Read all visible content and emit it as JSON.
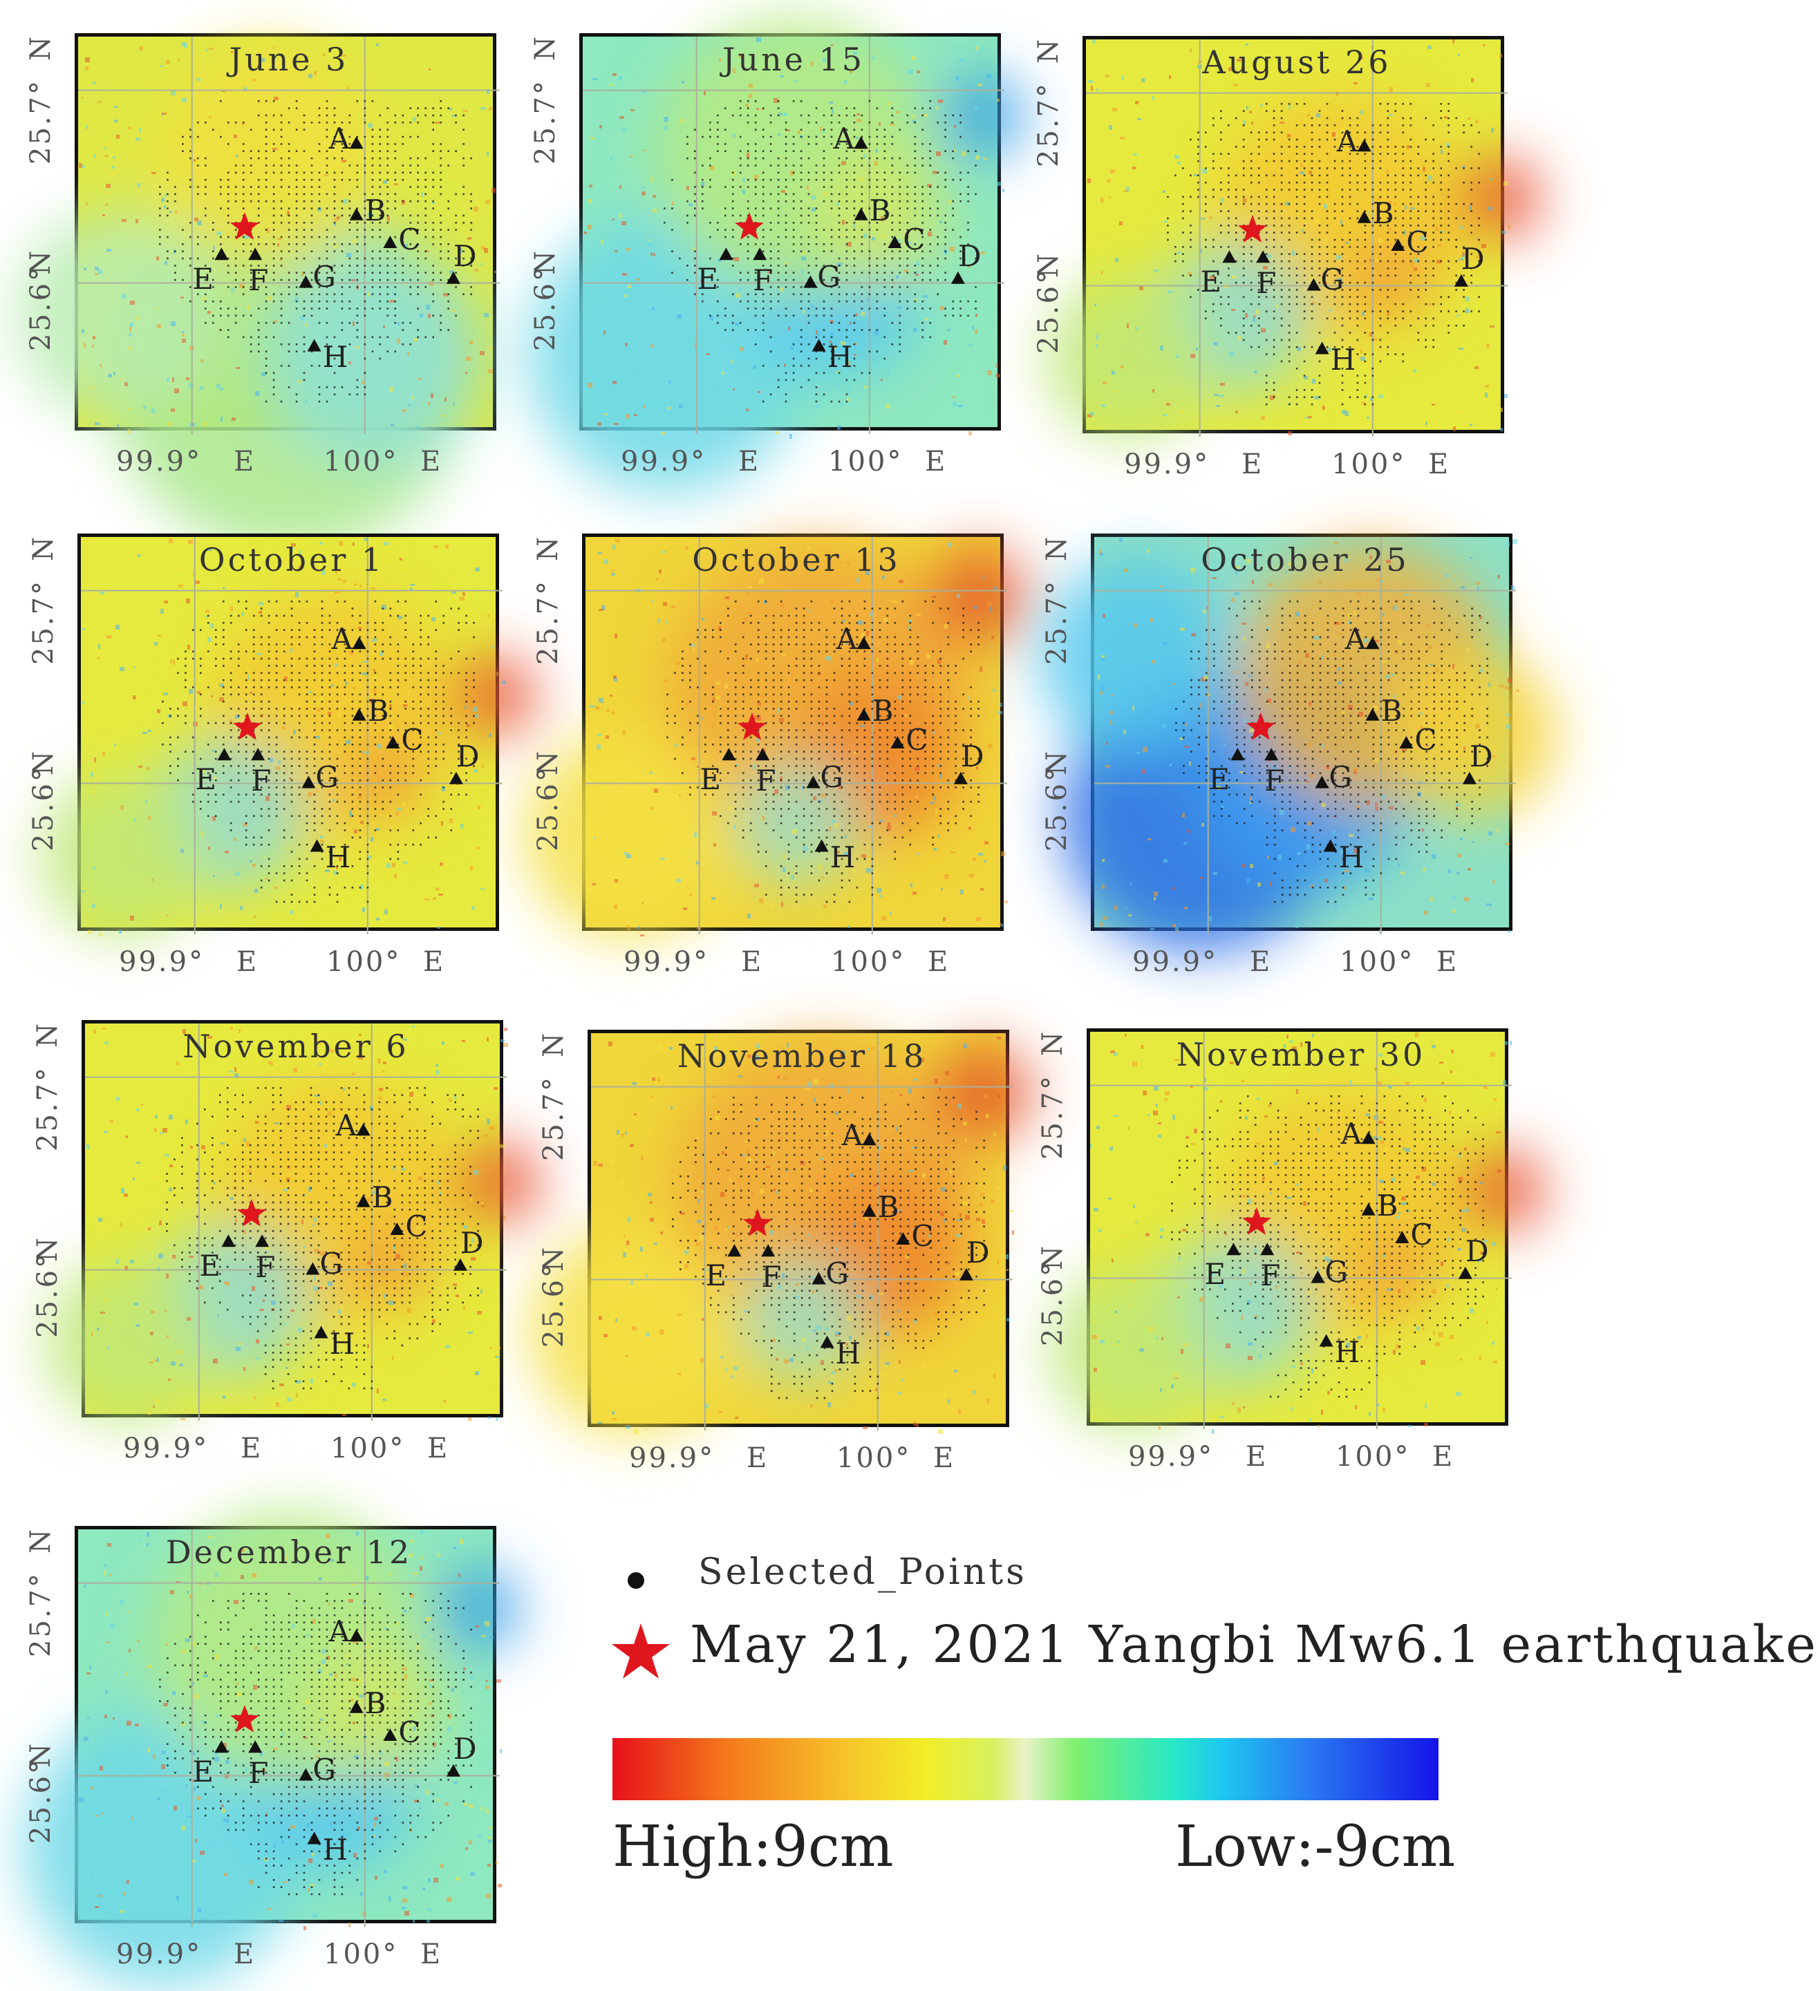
{
  "panels": [
    {
      "title": "June 3",
      "theme": "yellow-green"
    },
    {
      "title": "June 15",
      "theme": "cyan"
    },
    {
      "title": "August 26",
      "theme": "yellow"
    },
    {
      "title": "October 1",
      "theme": "yellow"
    },
    {
      "title": "October 13",
      "theme": "orange"
    },
    {
      "title": "October 25",
      "theme": "blue-orange"
    },
    {
      "title": "November 6",
      "theme": "yellow"
    },
    {
      "title": "November 18",
      "theme": "orange"
    },
    {
      "title": "November 30",
      "theme": "yellow"
    },
    {
      "title": "December 12",
      "theme": "cyan"
    }
  ],
  "axis": {
    "y_top": "25.7°",
    "y_bottom": "25.6°",
    "y_unit": "N",
    "x_left": "99.9°",
    "x_right": "100°",
    "x_unit": "E"
  },
  "points": [
    "A",
    "B",
    "C",
    "D",
    "E",
    "F",
    "G",
    "H"
  ],
  "legend": {
    "selected_points": "Selected_Points",
    "earthquake": "May 21, 2021 Yangbi Mw6.1 earthquake",
    "high": "High:9cm",
    "low": "Low:-9cm"
  },
  "colors": {
    "high": "#e8101a",
    "low": "#1414e8",
    "epicenter": "#e0161e"
  }
}
